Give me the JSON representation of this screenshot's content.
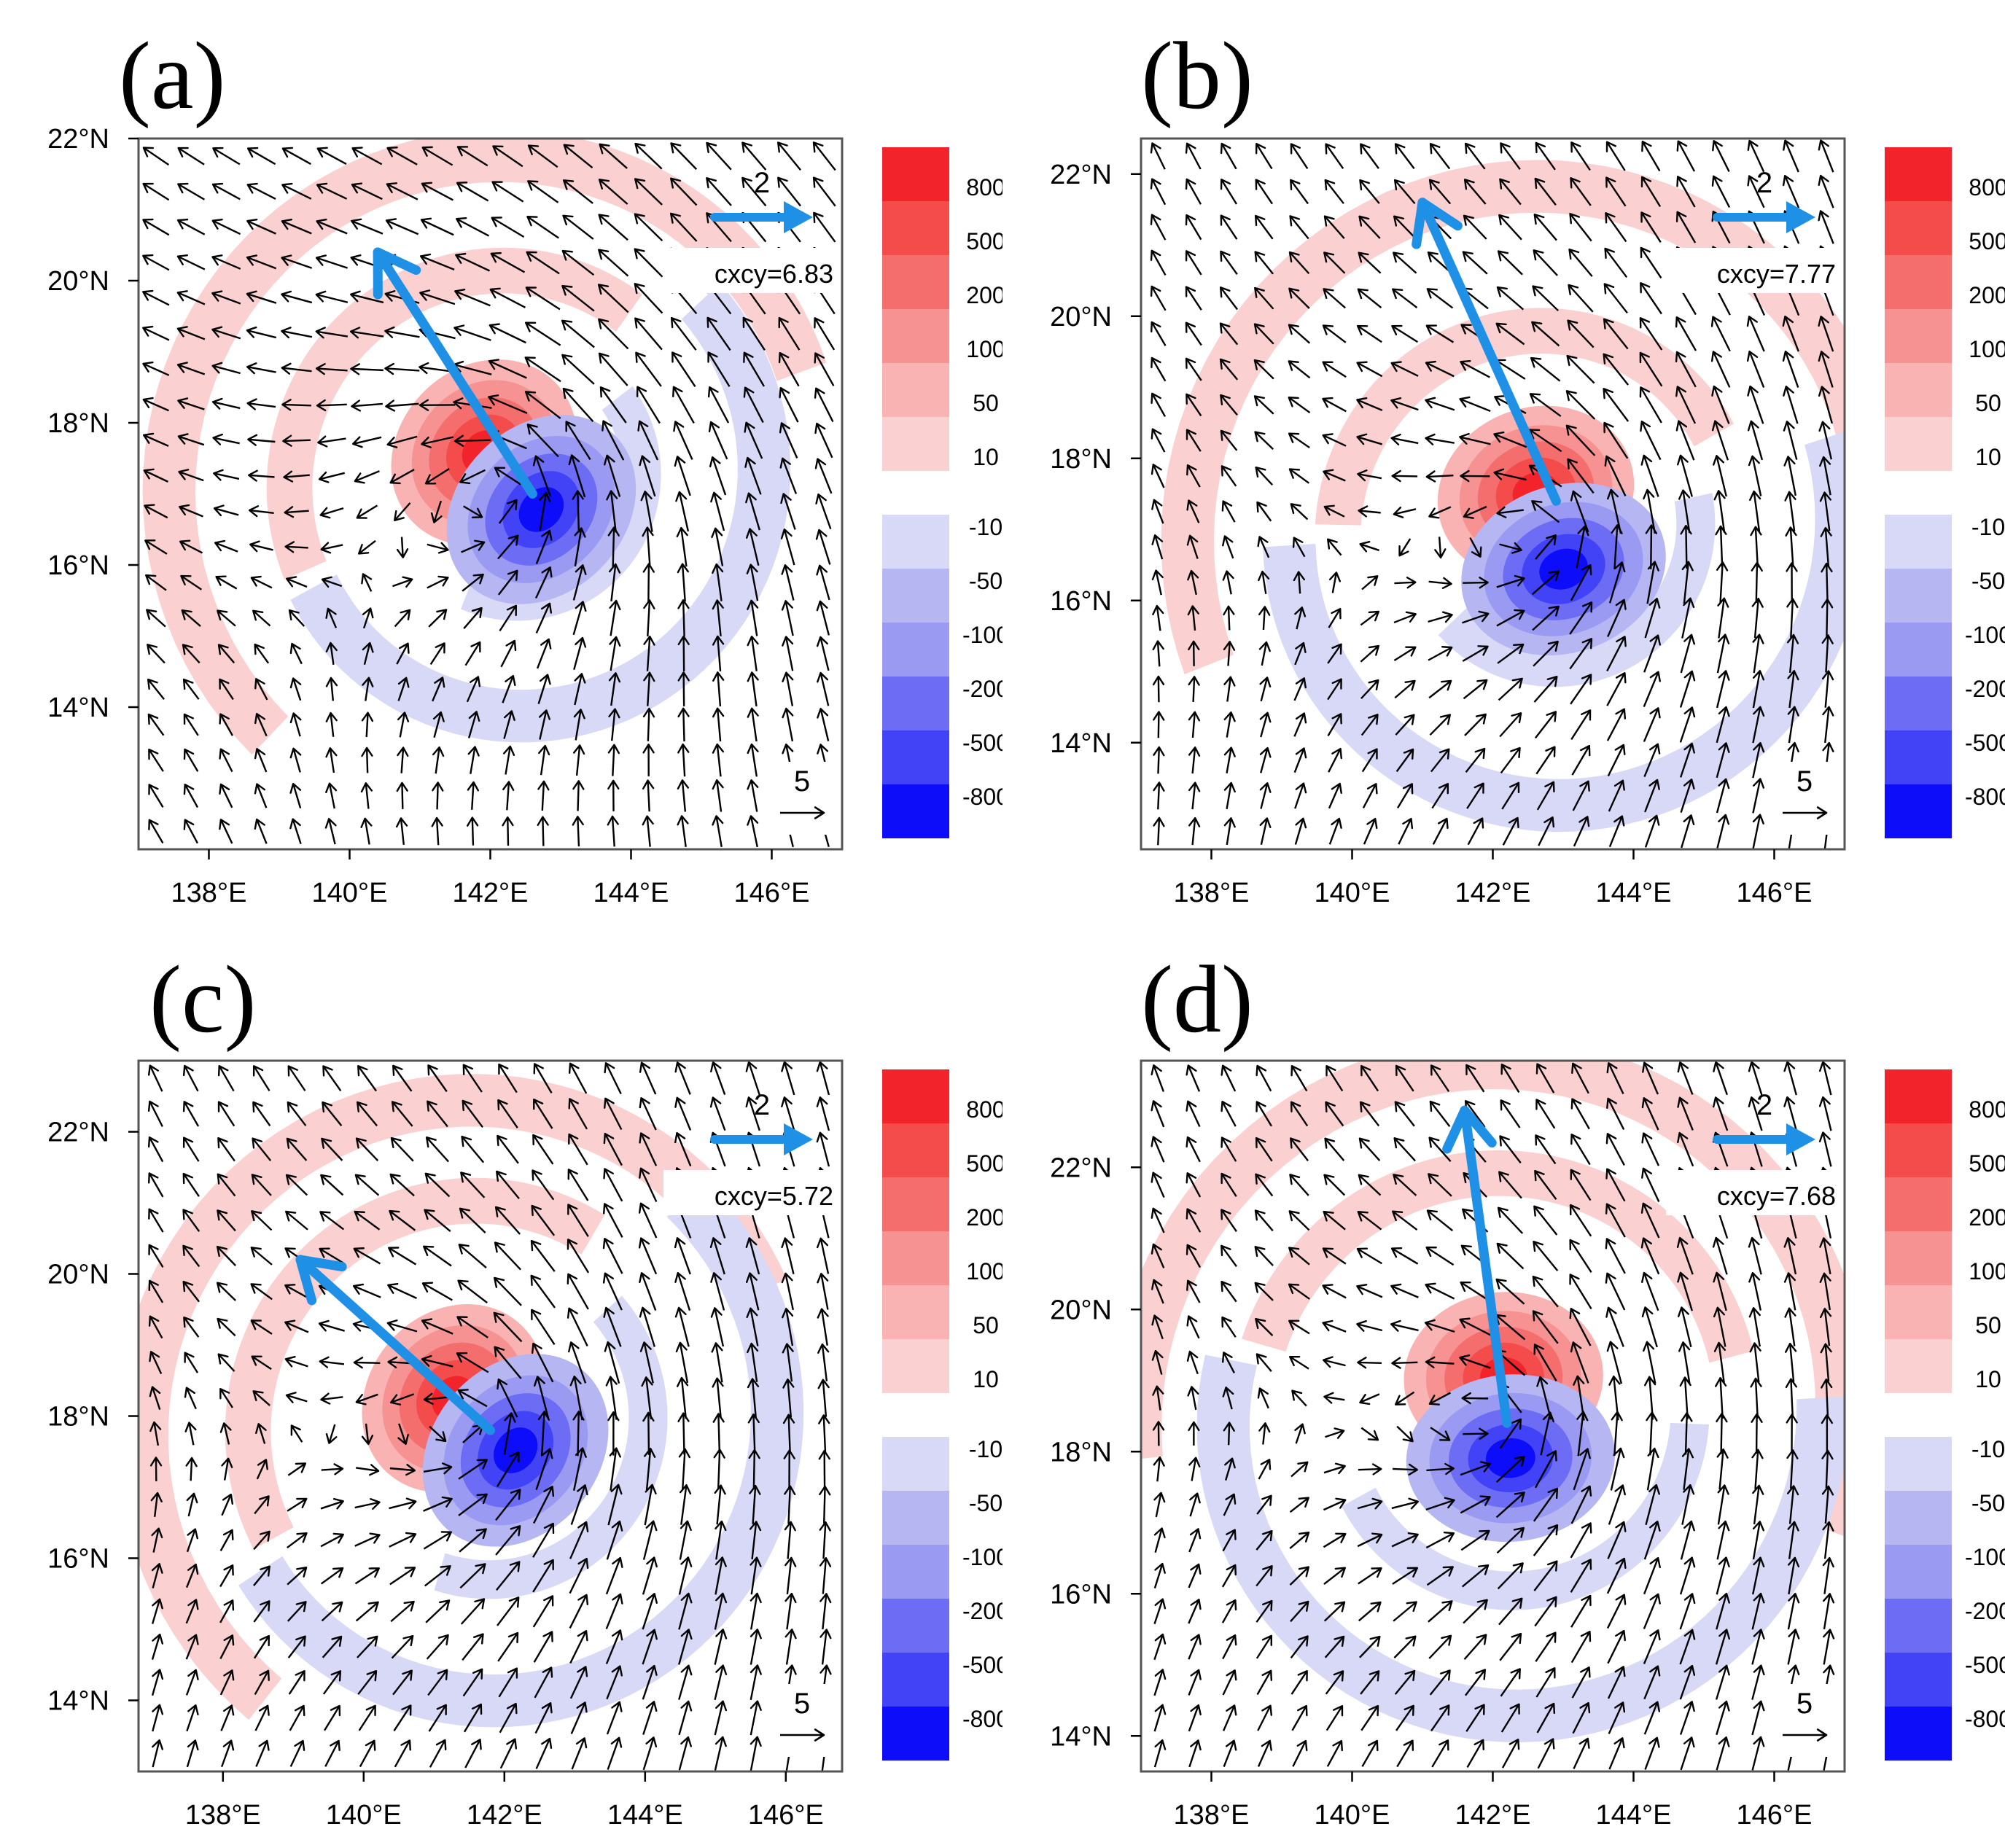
{
  "legend": {
    "levels": [
      "800",
      "500",
      "200",
      "100",
      "50",
      "10",
      "-10",
      "-50",
      "-100",
      "-200",
      "-500",
      "-800"
    ],
    "colors": [
      "#f2232a",
      "#f44b4b",
      "#f56e6e",
      "#f79292",
      "#f9b3b3",
      "#fbd0d0",
      "#d8d8f7",
      "#b6b6f2",
      "#9a9af2",
      "#6c6cf5",
      "#4242f7",
      "#0d0dfa"
    ]
  },
  "colors": {
    "motion_arrow": "#1e90e6",
    "wind_arrow": "#000000",
    "background": "#ffffff"
  },
  "reference": {
    "motion_label": "2",
    "wind_label": "5"
  },
  "chart_data": [
    {
      "type": "filled-contour-vector",
      "panel": "(a)",
      "cxcy_label": "cxcy=6.83",
      "xlim": [
        137.0,
        147.0
      ],
      "ylim": [
        12.0,
        22.0
      ],
      "xticks": [
        138,
        140,
        142,
        144,
        146
      ],
      "yticks": [
        14,
        16,
        18,
        20,
        22
      ],
      "xticklabels": [
        "138°E",
        "140°E",
        "142°E",
        "144°E",
        "146°E"
      ],
      "yticklabels": [
        "14°N",
        "16°N",
        "18°N",
        "20°N",
        "22°N"
      ],
      "center": [
        142.3,
        17.2
      ],
      "dipole_angle_deg": 135,
      "motion_vector": {
        "from": [
          142.6,
          17.0
        ],
        "to": [
          140.4,
          20.4
        ]
      },
      "steering_angle_deg": 125,
      "pos_ring_radii_deg": [
        5.0,
        3.2
      ],
      "neg_ring_radii_deg": [
        3.7,
        1.9
      ]
    },
    {
      "type": "filled-contour-vector",
      "panel": "(b)",
      "cxcy_label": "cxcy=7.77",
      "xlim": [
        137.0,
        147.0
      ],
      "ylim": [
        12.5,
        22.5
      ],
      "xticks": [
        138,
        140,
        142,
        144,
        146
      ],
      "yticks": [
        14,
        16,
        18,
        20,
        22
      ],
      "xticklabels": [
        "138°E",
        "140°E",
        "142°E",
        "144°E",
        "146°E"
      ],
      "yticklabels": [
        "14°N",
        "16°N",
        "18°N",
        "20°N",
        "22°N"
      ],
      "center": [
        142.8,
        17.0
      ],
      "dipole_angle_deg": 110,
      "motion_vector": {
        "from": [
          142.9,
          17.4
        ],
        "to": [
          141.0,
          21.6
        ]
      },
      "steering_angle_deg": 100,
      "pos_ring_radii_deg": [
        5.2,
        3.0
      ],
      "neg_ring_radii_deg": [
        4.2,
        2.1
      ]
    },
    {
      "type": "filled-contour-vector",
      "panel": "(c)",
      "cxcy_label": "cxcy=5.72",
      "xlim": [
        136.8,
        146.8
      ],
      "ylim": [
        13.0,
        23.0
      ],
      "xticks": [
        138,
        140,
        142,
        144,
        146
      ],
      "yticks": [
        14,
        16,
        18,
        20,
        22
      ],
      "xticklabels": [
        "138°E",
        "140°E",
        "142°E",
        "144°E",
        "146°E"
      ],
      "yticklabels": [
        "14°N",
        "16°N",
        "18°N",
        "20°N",
        "22°N"
      ],
      "center": [
        141.7,
        17.9
      ],
      "dipole_angle_deg": 140,
      "motion_vector": {
        "from": [
          141.8,
          17.8
        ],
        "to": [
          139.1,
          20.2
        ]
      },
      "steering_angle_deg": 95,
      "pos_ring_radii_deg": [
        5.0,
        3.4
      ],
      "neg_ring_radii_deg": [
        4.3,
        2.4
      ]
    },
    {
      "type": "filled-contour-vector",
      "panel": "(d)",
      "cxcy_label": "cxcy=7.68",
      "xlim": [
        137.0,
        147.0
      ],
      "ylim": [
        13.5,
        23.5
      ],
      "xticks": [
        138,
        140,
        142,
        144,
        146
      ],
      "yticks": [
        14,
        16,
        18,
        20,
        22
      ],
      "xticklabels": [
        "138°E",
        "140°E",
        "142°E",
        "144°E",
        "146°E"
      ],
      "yticklabels": [
        "14°N",
        "16°N",
        "18°N",
        "20°N",
        "22°N"
      ],
      "center": [
        142.2,
        18.5
      ],
      "dipole_angle_deg": 95,
      "motion_vector": {
        "from": [
          142.2,
          18.4
        ],
        "to": [
          141.6,
          22.8
        ]
      },
      "steering_angle_deg": 92,
      "pos_ring_radii_deg": [
        5.3,
        3.6
      ],
      "neg_ring_radii_deg": [
        4.5,
        2.6
      ]
    }
  ]
}
